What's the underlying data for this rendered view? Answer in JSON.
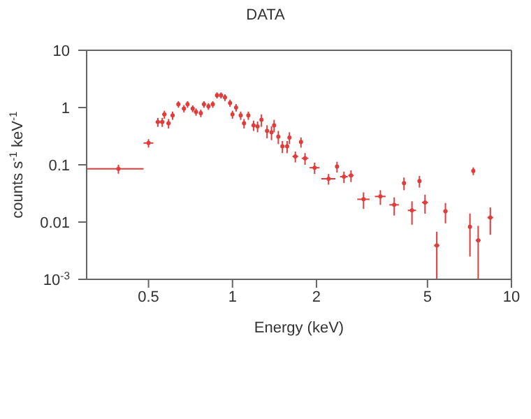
{
  "chart_data": {
    "type": "scatter",
    "title": "DATA",
    "xlabel": "Energy (keV)",
    "ylabel": "counts s$^{-1}$ keV$^{-1}$",
    "log": "xy",
    "grid": false,
    "legend": false,
    "xlim": [
      0.3,
      10
    ],
    "xticks": [
      0.5,
      1,
      2,
      5,
      10
    ],
    "ylim": [
      0.001,
      10
    ],
    "yticks": [
      {
        "value": 0.001,
        "label": "10$^{-3}$"
      },
      0.01,
      0.1,
      1,
      10
    ],
    "series": [
      {
        "color": "#e03c3c",
        "x": [
          0.39,
          0.5,
          0.54,
          0.56,
          0.57,
          0.59,
          0.61,
          0.64,
          0.67,
          0.69,
          0.72,
          0.74,
          0.77,
          0.79,
          0.82,
          0.85,
          0.88,
          0.91,
          0.94,
          0.98,
          1.0,
          1.03,
          1.07,
          1.1,
          1.14,
          1.19,
          1.23,
          1.27,
          1.33,
          1.38,
          1.41,
          1.46,
          1.51,
          1.57,
          1.6,
          1.68,
          1.76,
          1.82,
          1.97,
          2.21,
          2.37,
          2.51,
          2.66,
          2.95,
          3.39,
          3.8,
          4.12,
          4.4,
          4.68,
          4.9,
          5.4,
          5.8,
          7.1,
          7.3,
          7.6,
          8.4
        ],
        "values": [
          0.085,
          0.24,
          0.56,
          0.56,
          0.76,
          0.53,
          0.73,
          1.14,
          0.96,
          1.14,
          0.96,
          0.84,
          0.8,
          1.14,
          1.05,
          1.14,
          1.64,
          1.64,
          1.5,
          1.2,
          0.76,
          1.0,
          0.73,
          0.53,
          0.73,
          0.49,
          0.47,
          0.61,
          0.39,
          0.37,
          0.49,
          0.31,
          0.21,
          0.21,
          0.3,
          0.14,
          0.25,
          0.13,
          0.089,
          0.057,
          0.093,
          0.062,
          0.065,
          0.025,
          0.028,
          0.02,
          0.048,
          0.016,
          0.052,
          0.022,
          0.0039,
          0.0155,
          0.0083,
          0.078,
          0.0048,
          0.012
        ],
        "errors": [
          0.015,
          0.04,
          0.1,
          0.1,
          0.12,
          0.1,
          0.12,
          0.15,
          0.14,
          0.15,
          0.13,
          0.12,
          0.12,
          0.15,
          0.14,
          0.15,
          0.2,
          0.2,
          0.2,
          0.17,
          0.12,
          0.15,
          0.12,
          0.1,
          0.12,
          0.1,
          0.1,
          0.15,
          0.1,
          0.1,
          0.12,
          0.08,
          0.05,
          0.05,
          0.07,
          0.03,
          0.05,
          0.03,
          0.02,
          0.012,
          0.02,
          0.014,
          0.015,
          0.008,
          0.008,
          0.007,
          0.012,
          0.007,
          0.012,
          0.008,
          0.0029,
          0.006,
          0.0058,
          0.012,
          0.0038,
          0.006
        ],
        "xerrors": [
          0.09,
          0.02,
          0.01,
          0.01,
          0.01,
          0.01,
          0.01,
          0.01,
          0.01,
          0.01,
          0.01,
          0.01,
          0.01,
          0.01,
          0.01,
          0.01,
          0.01,
          0.01,
          0.01,
          0.01,
          0.01,
          0.01,
          0.01,
          0.01,
          0.01,
          0.01,
          0.015,
          0.015,
          0.015,
          0.015,
          0.015,
          0.02,
          0.02,
          0.02,
          0.02,
          0.04,
          0.02,
          0.05,
          0.08,
          0.13,
          0.03,
          0.08,
          0.06,
          0.15,
          0.15,
          0.15,
          0.05,
          0.15,
          0.05,
          0.12,
          0.12,
          0.1,
          0.1,
          0.03,
          0.15,
          0.2
        ]
      }
    ]
  }
}
